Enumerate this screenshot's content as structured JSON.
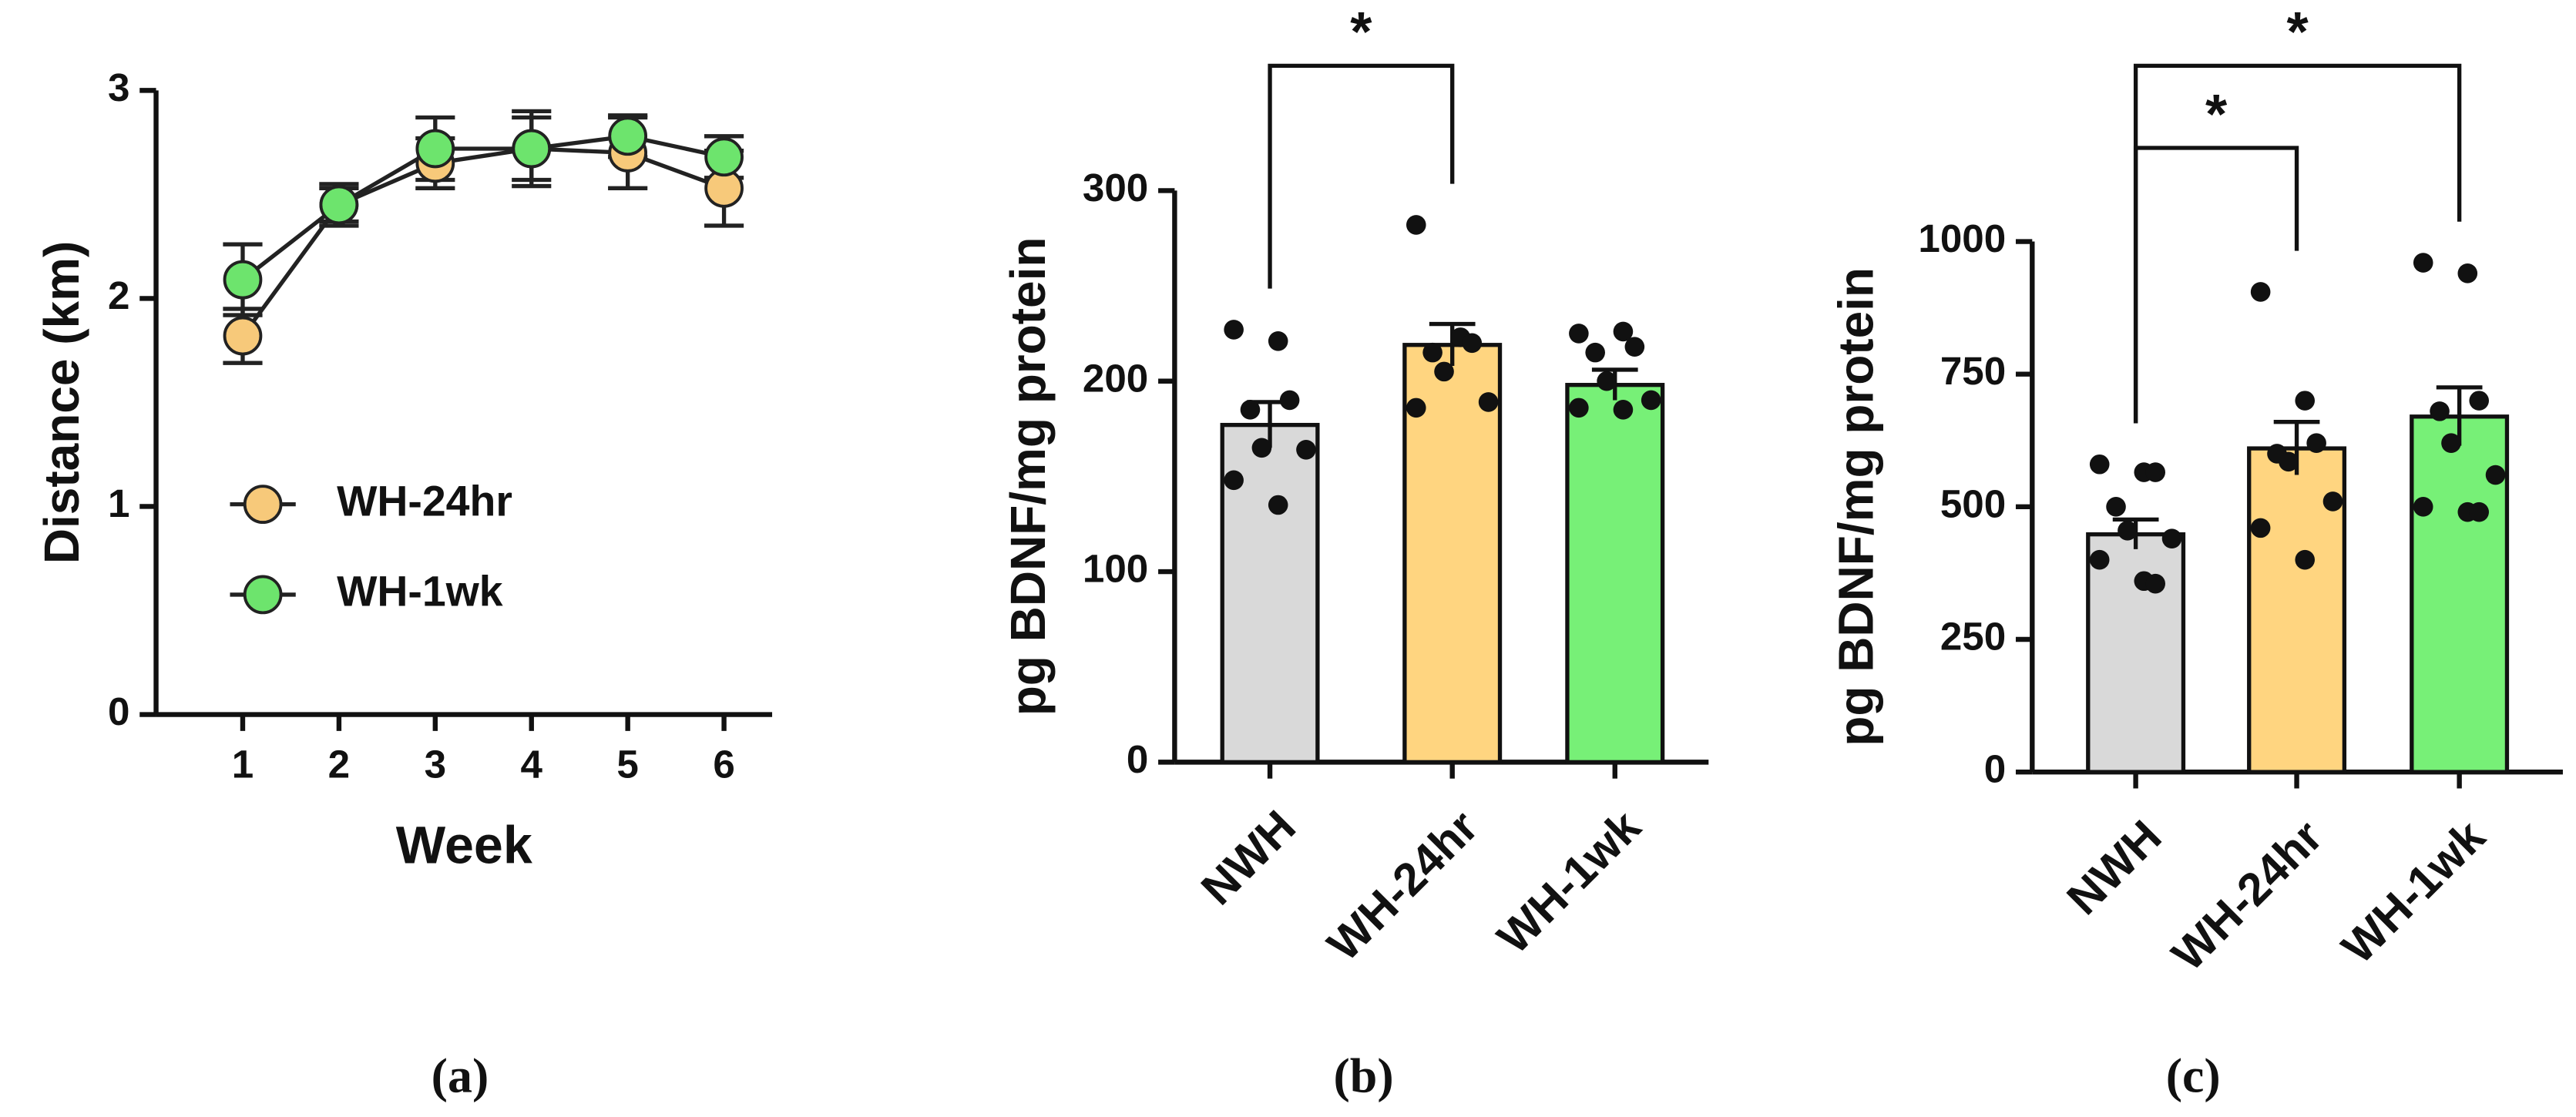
{
  "chart_data": [
    {
      "type": "line",
      "caption": "(a)",
      "x_label": "Week",
      "y_label": "Distance (km)",
      "x": [
        1,
        2,
        3,
        4,
        5,
        6
      ],
      "xlim": [
        0.1,
        6.5
      ],
      "xticks": [
        1,
        2,
        3,
        4,
        5,
        6
      ],
      "ylim": [
        0,
        3
      ],
      "yticks": [
        0,
        1,
        2,
        3
      ],
      "legend": "left",
      "series": [
        {
          "name": "WH-24hr",
          "color": "#f7c97a",
          "values": [
            1.82,
            2.45,
            2.65,
            2.72,
            2.7,
            2.53
          ],
          "errors": [
            0.13,
            0.08,
            0.12,
            0.15,
            0.17,
            0.18
          ]
        },
        {
          "name": "WH-1wk",
          "color": "#6de46d",
          "values": [
            2.09,
            2.45,
            2.72,
            2.72,
            2.78,
            2.68
          ],
          "errors": [
            0.17,
            0.1,
            0.15,
            0.18,
            0.1,
            0.1
          ]
        }
      ]
    },
    {
      "type": "bar",
      "caption": "(b)",
      "y_label": "pg BDNF/mg protein",
      "categories": [
        "NWH",
        "WH-24hr",
        "WH-1wk"
      ],
      "values": [
        177,
        219,
        198
      ],
      "errors": [
        12,
        11,
        8
      ],
      "colors": [
        "#d9d9d9",
        "#ffd580",
        "#77f077"
      ],
      "points": [
        [
          227,
          221,
          190,
          185,
          165,
          164,
          148,
          135
        ],
        [
          282,
          223,
          220,
          215,
          205,
          189,
          186
        ],
        [
          225,
          226,
          218,
          215,
          200,
          190,
          186,
          185
        ]
      ],
      "ylim": [
        0,
        300
      ],
      "yticks": [
        0,
        100,
        200,
        300
      ],
      "significance": [
        {
          "from": 0,
          "to": 1,
          "label": "*"
        }
      ]
    },
    {
      "type": "bar",
      "caption": "(c)",
      "y_label": "pg BDNF/mg protein",
      "categories": [
        "NWH",
        "WH-24hr",
        "WH-1wk"
      ],
      "values": [
        448,
        610,
        670
      ],
      "errors": [
        28,
        50,
        55
      ],
      "colors": [
        "#d9d9d9",
        "#ffd580",
        "#77f077"
      ],
      "points": [
        [
          580,
          565,
          565,
          500,
          455,
          440,
          400,
          360,
          355
        ],
        [
          905,
          700,
          620,
          600,
          585,
          510,
          460,
          400
        ],
        [
          960,
          940,
          700,
          680,
          620,
          560,
          500,
          490,
          490
        ]
      ],
      "ylim": [
        0,
        1000
      ],
      "yticks": [
        0,
        250,
        500,
        750,
        1000
      ],
      "significance": [
        {
          "from": 0,
          "to": 1,
          "label": "*"
        },
        {
          "from": 0,
          "to": 2,
          "label": "*"
        }
      ]
    }
  ]
}
